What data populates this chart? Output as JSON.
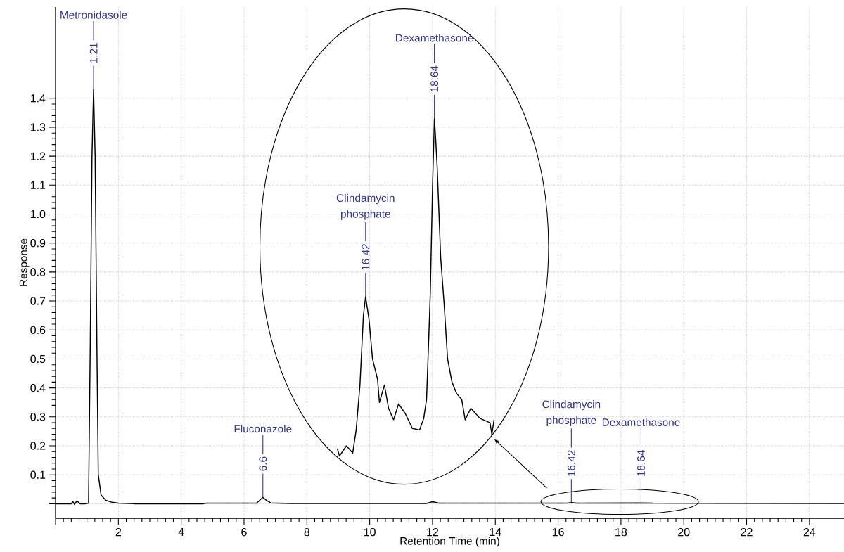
{
  "chart_data": {
    "type": "line",
    "xlabel": "Retention Time (min)",
    "ylabel": "Response",
    "xlim": [
      0,
      25.1
    ],
    "ylim": [
      -0.05,
      1.715
    ],
    "xticks": [
      {
        "value": 0,
        "label": null
      },
      2,
      4,
      6,
      8,
      10,
      12,
      14,
      16,
      18,
      20,
      22,
      24
    ],
    "yticks": [
      {
        "value": 0,
        "label": null
      },
      0.1,
      0.2,
      0.3,
      0.4,
      0.5,
      0.6,
      0.7,
      0.8,
      0.9,
      {
        "value": 1,
        "label": "1.0"
      },
      1.1,
      1.2,
      1.3,
      1.4
    ],
    "grid": true,
    "marker": "none",
    "line_style": "solid",
    "series": [
      {
        "color": "#000000",
        "x": [
          0,
          0.5,
          0.55,
          0.6,
          0.68,
          0.78,
          0.95,
          1.05,
          1.1,
          1.16,
          1.21,
          1.26,
          1.32,
          1.36,
          1.45,
          1.6,
          1.8,
          2.0,
          2.5,
          4.7,
          4.8,
          6.4,
          6.5,
          6.6,
          6.7,
          6.85,
          7.5,
          11.8,
          12.0,
          12.2,
          16.3,
          16.42,
          16.6,
          18.64,
          19.0,
          25.1
        ],
        "values": [
          0,
          0,
          0.008,
          -0.002,
          0.01,
          0,
          0,
          0.002,
          0.5,
          1.2,
          1.43,
          1.2,
          0.5,
          0.1,
          0.03,
          0.012,
          0.005,
          0.002,
          0,
          0,
          0.002,
          0.002,
          0.012,
          0.022,
          0.013,
          0.003,
          0.001,
          0.001,
          0.007,
          0.002,
          0.002,
          0.004,
          0.002,
          0.003,
          0.002,
          0.001
        ]
      },
      {
        "color": "#000000",
        "x": [
          8.97,
          9.04,
          9.26,
          9.46,
          9.57,
          9.69,
          9.8,
          9.87,
          9.98,
          10.09,
          10.25,
          10.31,
          10.47,
          10.6,
          10.76,
          10.92,
          11.14,
          11.36,
          11.59,
          11.72,
          11.81,
          11.88,
          11.93,
          12.0,
          12.06,
          12.1,
          12.15,
          12.26,
          12.37,
          12.48,
          12.62,
          12.77,
          12.93,
          13.04,
          13.22,
          13.51,
          13.83,
          13.89,
          13.96
        ],
        "values": [
          0.19,
          0.165,
          0.2,
          0.175,
          0.255,
          0.41,
          0.65,
          0.715,
          0.635,
          0.5,
          0.43,
          0.35,
          0.41,
          0.33,
          0.29,
          0.345,
          0.31,
          0.26,
          0.255,
          0.295,
          0.36,
          0.57,
          0.73,
          1.09,
          1.33,
          1.26,
          1.16,
          0.85,
          0.69,
          0.5,
          0.42,
          0.38,
          0.36,
          0.29,
          0.33,
          0.295,
          0.28,
          0.24,
          0.29
        ]
      }
    ],
    "annotations": [
      "Metronidasole",
      {
        "text": "1.21",
        "x": 1.21,
        "y": 1.43
      },
      "Fluconazole",
      {
        "text": "6.6",
        "x": 6.6,
        "y": 0.022
      },
      "Clindamycin phosphate",
      {
        "text": "16.42",
        "x": 9.87,
        "y": 0.715
      },
      "Dexamethasone",
      {
        "text": "18.64",
        "x": 12.06,
        "y": 1.33
      },
      "Clindamycin phosphate",
      {
        "text": "16.42",
        "x": 16.42,
        "y": 0.003
      },
      "Dexamethasone",
      {
        "text": "18.64",
        "x": 18.64,
        "y": 0.003
      }
    ]
  }
}
